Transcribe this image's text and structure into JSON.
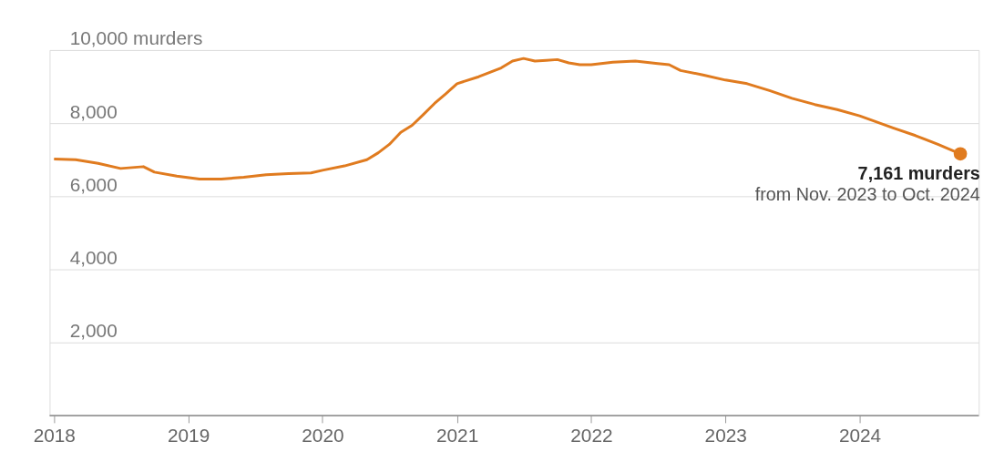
{
  "chart_data": {
    "type": "line",
    "x": [
      "2018-01",
      "2018-03",
      "2018-05",
      "2018-07",
      "2018-09",
      "2018-10",
      "2018-12",
      "2019-02",
      "2019-04",
      "2019-06",
      "2019-08",
      "2019-10",
      "2019-12",
      "2020-01",
      "2020-03",
      "2020-05",
      "2020-06",
      "2020-07",
      "2020-08",
      "2020-09",
      "2020-10",
      "2020-11",
      "2020-12",
      "2021-01",
      "2021-03",
      "2021-05",
      "2021-06",
      "2021-07",
      "2021-08",
      "2021-09",
      "2021-10",
      "2021-11",
      "2021-12",
      "2022-01",
      "2022-03",
      "2022-05",
      "2022-07",
      "2022-08",
      "2022-09",
      "2022-11",
      "2023-01",
      "2023-03",
      "2023-05",
      "2023-07",
      "2023-09",
      "2023-11",
      "2024-01",
      "2024-02",
      "2024-04",
      "2024-06",
      "2024-08",
      "2024-10"
    ],
    "series": [
      {
        "color": "#e07b1f",
        "values": [
          7020,
          7000,
          6900,
          6760,
          6810,
          6660,
          6550,
          6470,
          6470,
          6520,
          6590,
          6620,
          6640,
          6710,
          6830,
          7000,
          7190,
          7420,
          7750,
          7940,
          8230,
          8540,
          8800,
          9080,
          9270,
          9510,
          9700,
          9770,
          9700,
          9720,
          9740,
          9650,
          9600,
          9600,
          9670,
          9700,
          9630,
          9600,
          9440,
          9320,
          9180,
          9080,
          8890,
          8680,
          8510,
          8370,
          8200,
          8090,
          7870,
          7660,
          7420,
          7161
        ]
      }
    ],
    "xlim": [
      "2017-12-20",
      "2024-11-20"
    ],
    "xticks": [
      "2018",
      "2019",
      "2020",
      "2021",
      "2022",
      "2023",
      "2024"
    ],
    "ylim": [
      0,
      10000
    ],
    "yticks": [
      {
        "value": 0,
        "label": null
      },
      {
        "value": 2000,
        "label": "2,000"
      },
      {
        "value": 4000,
        "label": "4,000"
      },
      {
        "value": 6000,
        "label": "6,000"
      },
      {
        "value": 8000,
        "label": "8,000"
      },
      {
        "value": 10000,
        "label": "10,000 murders"
      }
    ],
    "grid": "y",
    "marker": "none",
    "line_style": "solid",
    "annotations": [
      {
        "text": "7,161 murders",
        "x": "2024-10",
        "y": 7161
      },
      {
        "text": "from Nov. 2023 to Oct. 2024",
        "x": "2024-10",
        "y": 7161
      }
    ]
  }
}
